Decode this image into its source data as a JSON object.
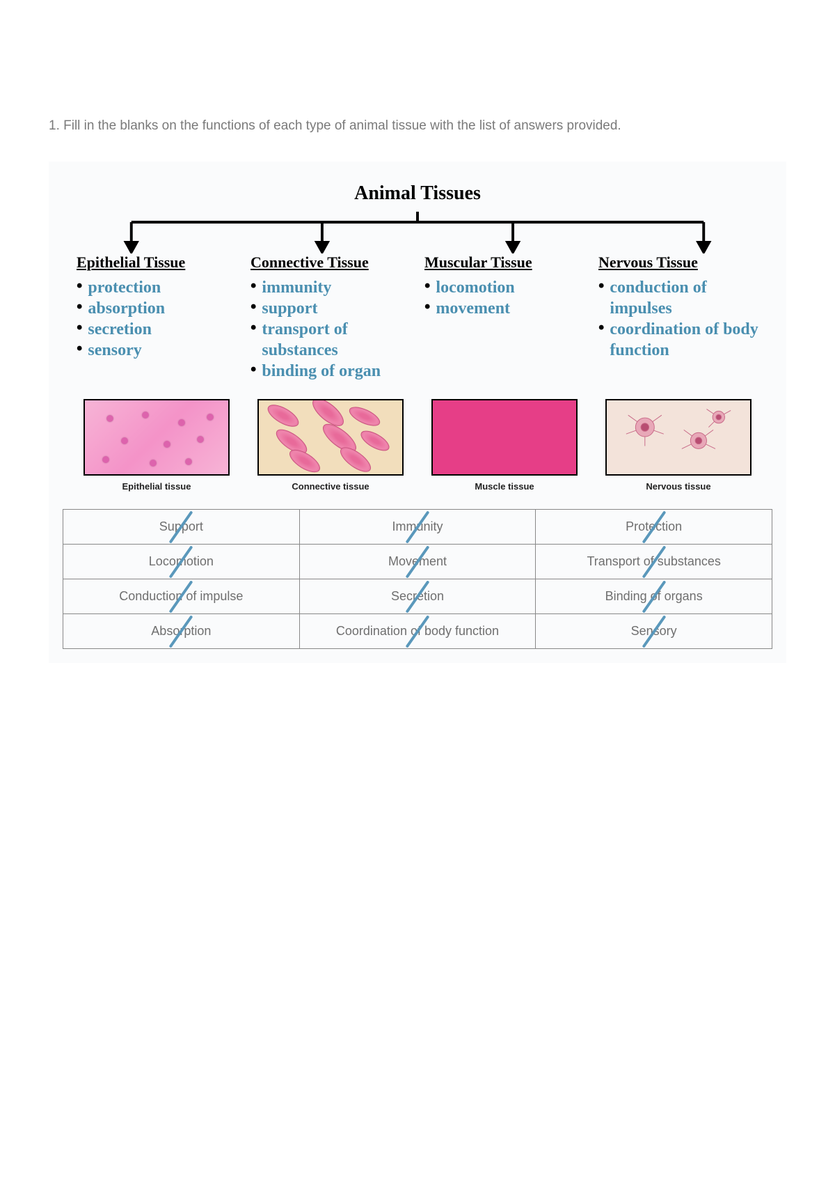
{
  "instruction": "1. Fill in the blanks on the functions of each type of animal tissue with the list of answers provided.",
  "title": "Animal Tissues",
  "handwriting_color": "#4a8fb0",
  "tissues": [
    {
      "heading": "Epithelial Tissue",
      "items": [
        "protection",
        "absorption",
        "secretion",
        "sensory"
      ],
      "caption": "Epithelial tissue"
    },
    {
      "heading": "Connective Tissue",
      "items": [
        "immunity",
        "support",
        "transport of substances",
        "binding of organ"
      ],
      "caption": "Connective tissue"
    },
    {
      "heading": "Muscular Tissue",
      "items": [
        "locomotion",
        "movement"
      ],
      "caption": "Muscle tissue"
    },
    {
      "heading": "Nervous Tissue",
      "items": [
        "conduction of impulses",
        "coordination of body function"
      ],
      "caption": "Nervous tissue"
    }
  ],
  "answer_bank": {
    "rows": [
      [
        "Support",
        "Immunity",
        "Protection"
      ],
      [
        "Locomotion",
        "Movement",
        "Transport of substances"
      ],
      [
        "Conduction of impulse",
        "Secretion",
        "Binding of organs"
      ],
      [
        "Absorption",
        "Coordination of body function",
        "Sensory"
      ]
    ],
    "all_struck": true,
    "strike_color": "#5a98bb"
  },
  "colors": {
    "page_bg": "#ffffff",
    "worksheet_bg": "#fafbfc",
    "instruction_text": "#7a7a7a",
    "table_border": "#888888",
    "table_text": "#6f6f6f",
    "epithelial_bg": "#f7b4d6",
    "connective_bg": "#f2debc",
    "muscle_bg": "#e63e87",
    "nervous_bg": "#f3e3da"
  }
}
